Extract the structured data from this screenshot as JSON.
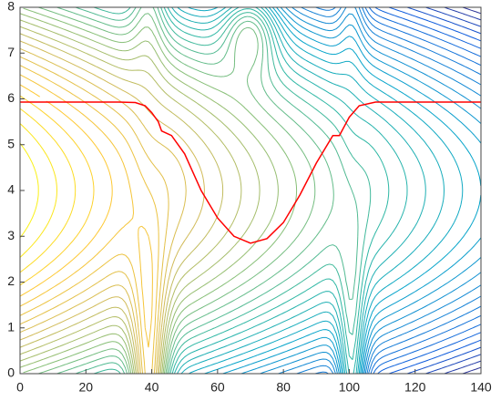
{
  "chart_data": {
    "type": "contour",
    "xlim": [
      0,
      140
    ],
    "ylim": [
      0,
      8
    ],
    "xticks": [
      0,
      20,
      40,
      60,
      80,
      100,
      120,
      140
    ],
    "yticks": [
      0,
      1,
      2,
      3,
      4,
      5,
      6,
      7,
      8
    ],
    "series": [
      {
        "color": "#ff0000",
        "x": [
          0,
          30,
          35,
          38,
          40,
          42,
          43,
          46,
          50,
          55,
          60,
          65,
          70,
          75,
          80,
          85,
          90,
          95,
          97,
          100,
          103,
          108,
          140
        ],
        "values": [
          5.93,
          5.93,
          5.92,
          5.85,
          5.7,
          5.5,
          5.3,
          5.2,
          4.8,
          4.0,
          3.4,
          3.0,
          2.85,
          2.95,
          3.3,
          3.9,
          4.6,
          5.2,
          5.2,
          5.6,
          5.85,
          5.93,
          5.93
        ]
      }
    ]
  }
}
